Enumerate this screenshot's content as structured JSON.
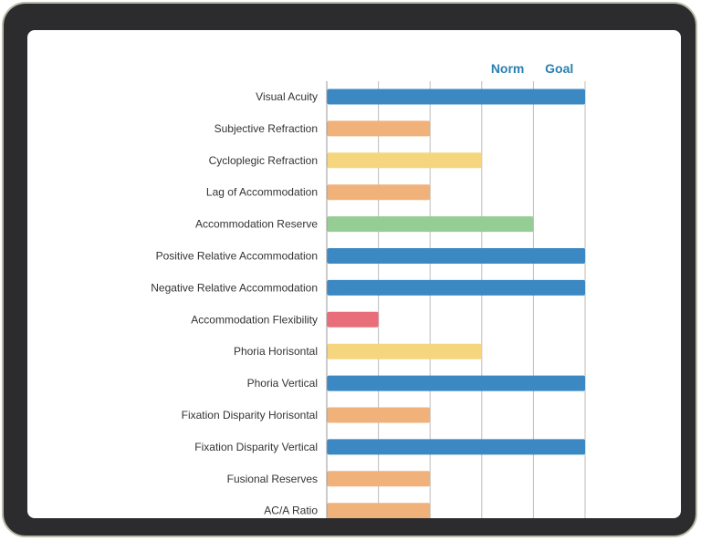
{
  "chart_data": {
    "type": "bar",
    "orientation": "horizontal",
    "title": "",
    "xlabel": "",
    "ylabel": "",
    "xlim": [
      0,
      5
    ],
    "grid": true,
    "column_labels": [
      {
        "text": "Norm",
        "x": 3.5
      },
      {
        "text": "Goal",
        "x": 4.5
      }
    ],
    "categories": [
      "Visual Acuity",
      "Subjective Refraction",
      "Cycloplegic Refraction",
      "Lag of Accommodation",
      "Accommodation Reserve",
      "Positive Relative Accommodation",
      "Negative Relative Accommodation",
      "Accommodation Flexibility",
      "Phoria Horisontal",
      "Phoria Vertical",
      "Fixation Disparity Horisontal",
      "Fixation Disparity Vertical",
      "Fusional Reserves",
      "AC/A Ratio"
    ],
    "values": [
      5,
      2,
      3,
      2,
      4,
      5,
      5,
      1,
      3,
      5,
      2,
      5,
      2,
      2
    ],
    "colors": {
      "1": "#e86f7a",
      "2": "#f0b27a",
      "3": "#f5d67e",
      "4": "#95cd95",
      "5": "#3b88c3"
    }
  }
}
